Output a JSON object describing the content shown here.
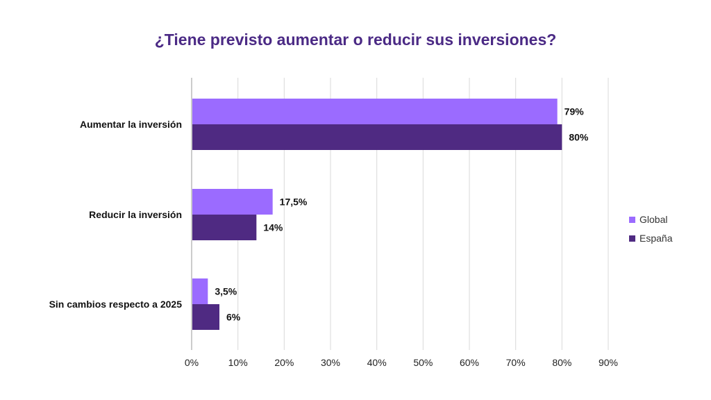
{
  "chart_data": {
    "type": "bar",
    "orientation": "horizontal",
    "title": "¿Tiene previsto aumentar o reducir sus inversiones?",
    "categories": [
      "Aumentar la inversión",
      "Reducir la inversión",
      "Sin cambios respecto a 2025"
    ],
    "series": [
      {
        "name": "Global",
        "color": "#9b6bff",
        "values": [
          79,
          17.5,
          3.5
        ],
        "labels": [
          "79%",
          "17,5%",
          "3,5%"
        ]
      },
      {
        "name": "España",
        "color": "#4f2a82",
        "values": [
          80,
          14,
          6
        ],
        "labels": [
          "80%",
          "14%",
          "6%"
        ]
      }
    ],
    "xlim": [
      0,
      90
    ],
    "xticks": [
      0,
      10,
      20,
      30,
      40,
      50,
      60,
      70,
      80,
      90
    ],
    "xtick_labels": [
      "0%",
      "10%",
      "20%",
      "30%",
      "40%",
      "50%",
      "60%",
      "70%",
      "80%",
      "90%"
    ],
    "grid": true,
    "legend_position": "right"
  }
}
